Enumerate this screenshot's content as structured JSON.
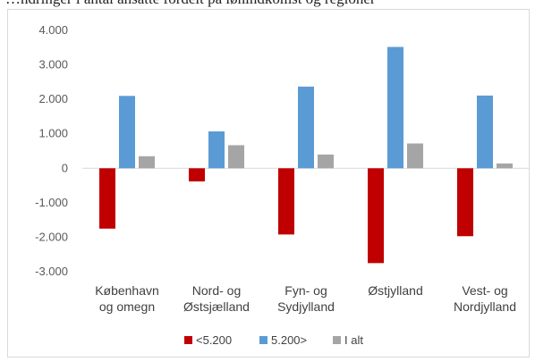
{
  "caption_fragment": "…ndringer i antal ansatte fordelt på lønindkomst og regioner",
  "chart_data": {
    "type": "bar",
    "title": "",
    "xlabel": "",
    "ylabel": "",
    "ylim": [
      -3000,
      4000
    ],
    "yticks": [
      4000,
      3000,
      2000,
      1000,
      0,
      -1000,
      -2000,
      -3000
    ],
    "ytick_labels": [
      "4.000",
      "3.000",
      "2.000",
      "1.000",
      "0",
      "-1.000",
      "-2.000",
      "-3.000"
    ],
    "categories": [
      [
        "København",
        "og omegn"
      ],
      [
        "Nord- og",
        "Østsjælland"
      ],
      [
        "Fyn- og",
        "Sydjylland"
      ],
      [
        "Østjylland"
      ],
      [
        "Vest- og",
        "Nordjylland"
      ]
    ],
    "series": [
      {
        "name": "<5.200",
        "color": "#c00000",
        "values": [
          -1750,
          -380,
          -1920,
          -2750,
          -1970
        ]
      },
      {
        "name": "5.200>",
        "color": "#5b9bd5",
        "values": [
          2100,
          1070,
          2370,
          3520,
          2110
        ]
      },
      {
        "name": "I alt",
        "color": "#a5a5a5",
        "values": [
          350,
          670,
          400,
          720,
          140
        ]
      }
    ],
    "grid": false,
    "legend_position": "bottom"
  }
}
